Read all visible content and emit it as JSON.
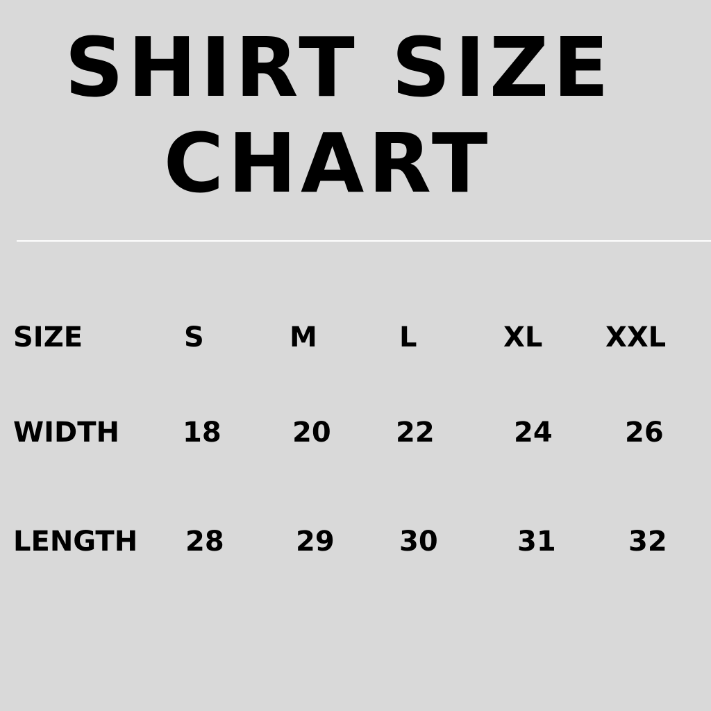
{
  "title": {
    "line1": "SHIRT SIZE",
    "line2": "CHART"
  },
  "table": {
    "rows": [
      {
        "label": "SIZE",
        "values": [
          "S",
          "M",
          "L",
          "XL",
          "XXL"
        ]
      },
      {
        "label": "WIDTH",
        "values": [
          "18",
          "20",
          "22",
          "24",
          "26"
        ]
      },
      {
        "label": "LENGTH",
        "values": [
          "28",
          "29",
          "30",
          "31",
          "32"
        ]
      }
    ]
  }
}
